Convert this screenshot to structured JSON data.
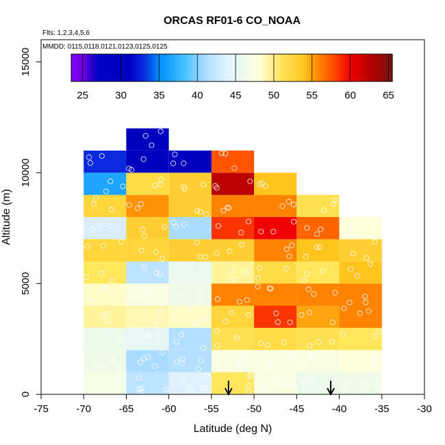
{
  "chart_data": {
    "type": "heatmap",
    "title": "ORCAS RF01-6 CO_NOAA",
    "annotations": [
      "Flts: 1,2,3,4,5,6",
      "MMDD: 0115,0118,0121,0123,0125,0125"
    ],
    "xlabel": "Latitude (deg N)",
    "ylabel": "Altitude (m)",
    "xlim": [
      -75,
      -30
    ],
    "ylim": [
      0,
      16000
    ],
    "x_ticks": [
      -75,
      -70,
      -65,
      -60,
      -55,
      -50,
      -45,
      -40,
      -35,
      -30
    ],
    "y_ticks": [
      0,
      5000,
      10000,
      15000
    ],
    "colorbar": {
      "range": [
        23.5,
        65.5
      ],
      "ticks": [
        25,
        30,
        35,
        40,
        45,
        50,
        55,
        60,
        65
      ]
    },
    "bin_width_lat": 5,
    "bin_height_alt": 1000,
    "lat_bin_starts": [
      -70,
      -65,
      -60,
      -55,
      -50,
      -45,
      -40
    ],
    "alt_bin_starts": [
      0,
      1000,
      2000,
      3000,
      4000,
      5000,
      6000,
      7000,
      8000,
      9000,
      10000,
      11000
    ],
    "values": [
      [
        47.0,
        42.0,
        44.0,
        51.0,
        47.5,
        46.0,
        46.5
      ],
      [
        46.5,
        41.0,
        41.5,
        47.5,
        47.5,
        47.5,
        48.0
      ],
      [
        46.0,
        45.0,
        41.5,
        51.5,
        52.0,
        51.5,
        51.0
      ],
      [
        49.5,
        49.0,
        48.5,
        52.5,
        58.5,
        55.0,
        56.0
      ],
      [
        48.5,
        47.5,
        46.5,
        56.0,
        56.0,
        56.0,
        56.0
      ],
      [
        51.0,
        42.0,
        45.5,
        49.5,
        52.0,
        51.0,
        54.0
      ],
      [
        52.5,
        52.5,
        53.0,
        53.0,
        56.0,
        54.0,
        53.0
      ],
      [
        43.5,
        53.0,
        41.0,
        58.5,
        60.0,
        57.0,
        48.0
      ],
      [
        52.5,
        55.5,
        53.0,
        56.0,
        56.0,
        51.5,
        null
      ],
      [
        36.5,
        52.0,
        53.0,
        62.5,
        54.0,
        null,
        null
      ],
      [
        33.0,
        31.0,
        30.5,
        57.5,
        null,
        null,
        null
      ],
      [
        null,
        30.5,
        null,
        null,
        null,
        null,
        null
      ]
    ],
    "arrows_at_latitude": [
      -53,
      -41
    ]
  }
}
